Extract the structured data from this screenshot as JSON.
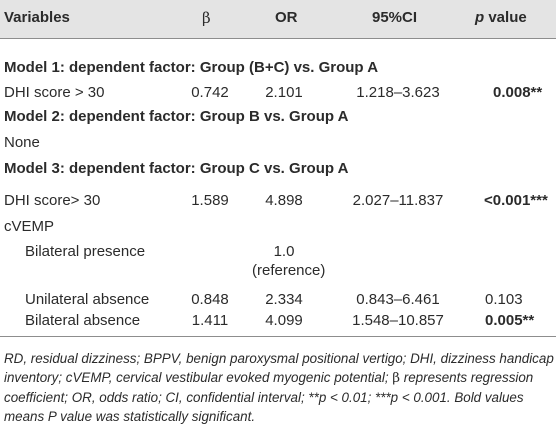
{
  "header": {
    "variables": "Variables",
    "beta": "β",
    "or": "OR",
    "ci": "95%CI",
    "p_italic": "p",
    "p_rest": " value"
  },
  "sections": [
    {
      "title": "Model 1: dependent factor: Group (B+C) vs. Group A",
      "rows": [
        {
          "variable": "DHI score > 30",
          "beta": "0.742",
          "or": "2.101",
          "ci": "1.218–3.623",
          "p": "0.008",
          "p_stars": "**"
        }
      ]
    },
    {
      "title": "Model 2: dependent factor: Group B vs. Group A",
      "none": "None"
    },
    {
      "title": "Model 3: dependent factor: Group C vs. Group A",
      "rows": [
        {
          "variable": "DHI score> 30",
          "beta": "1.589",
          "or": "4.898",
          "ci": "2.027–11.837",
          "p": "<0.001",
          "p_stars": "***"
        },
        {
          "variable": "cVEMP"
        },
        {
          "variable": "Bilateral presence",
          "or_line1": "1.0",
          "or_line2": "(reference)"
        },
        {
          "variable": "Unilateral absence",
          "beta": "0.848",
          "or": "2.334",
          "ci": "0.843–6.461",
          "p": "0.103"
        },
        {
          "variable": "Bilateral absence",
          "beta": "1.411",
          "or": "4.099",
          "ci": "1.548–10.857",
          "p": "0.005",
          "p_stars": "**"
        }
      ]
    }
  ],
  "footnote": {
    "part1": "RD, residual dizziness; BPPV, benign paroxysmal positional vertigo; DHI, dizziness handicap inventory; cVEMP, cervical vestibular evoked myogenic potential; ",
    "beta": "β",
    "part2": " represents regression coefficient; OR, odds ratio; CI, confidential interval; **p < 0.01; ***p < 0.001. Bold values means P value was statistically significant."
  }
}
